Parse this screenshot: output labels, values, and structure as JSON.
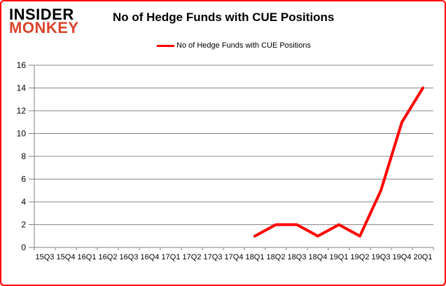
{
  "window": {
    "background_color": "#ffffff",
    "border_color": "#ff0000"
  },
  "logo": {
    "line1": "INSIDER",
    "line2": "MONKEY",
    "line1_color": "#000000",
    "line2_color": "#d9452c"
  },
  "header": {
    "title": "No of Hedge Funds with CUE Positions"
  },
  "legend": {
    "label": "No of Hedge Funds with CUE Positions",
    "line_color": "#ff0000",
    "position": "top-center"
  },
  "chart_data": {
    "type": "line",
    "title": "No of Hedge Funds with CUE Positions",
    "xlabel": "",
    "ylabel": "",
    "categories": [
      "15Q3",
      "15Q4",
      "16Q1",
      "16Q2",
      "16Q3",
      "16Q4",
      "17Q1",
      "17Q2",
      "17Q3",
      "17Q4",
      "18Q1",
      "18Q2",
      "18Q3",
      "18Q4",
      "19Q1",
      "19Q2",
      "19Q3",
      "19Q4",
      "20Q1"
    ],
    "series": [
      {
        "name": "No of Hedge Funds with CUE Positions",
        "color": "#ff0000",
        "values": [
          null,
          null,
          null,
          null,
          null,
          null,
          null,
          null,
          null,
          null,
          1,
          2,
          2,
          1,
          2,
          1,
          5,
          11,
          14
        ]
      }
    ],
    "ylim": [
      0,
      16
    ],
    "yticks": [
      0,
      2,
      4,
      6,
      8,
      10,
      12,
      14,
      16
    ],
    "grid": "horizontal",
    "gridline_color": "#888888",
    "axis_color": "#808080",
    "line_width": 4
  }
}
